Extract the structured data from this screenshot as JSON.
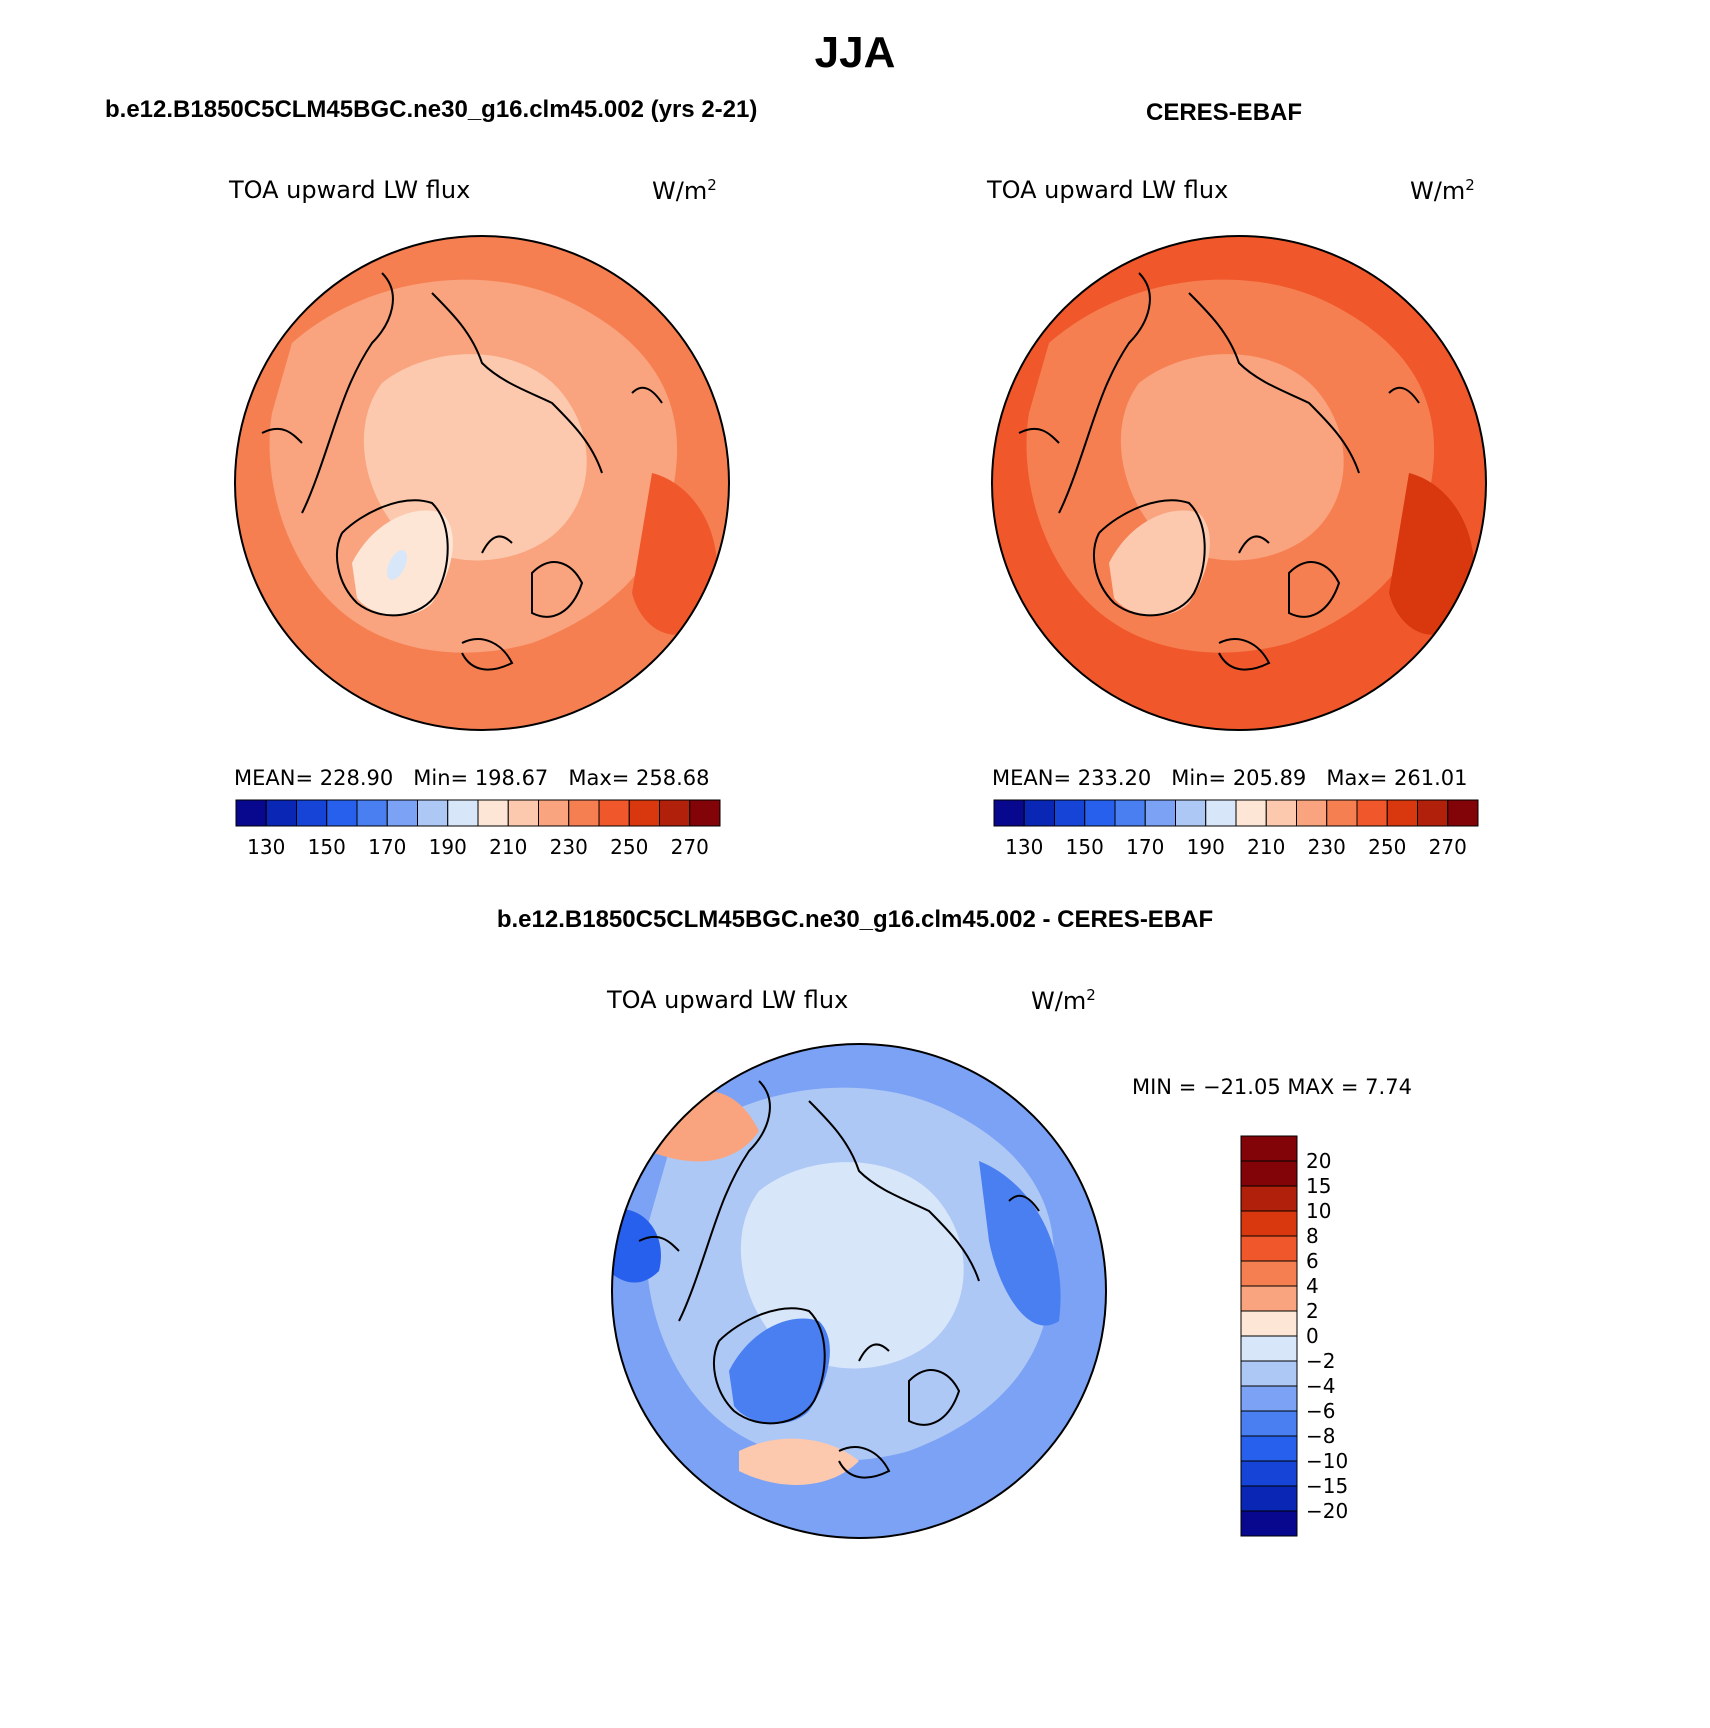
{
  "title": "JJA",
  "panels": [
    {
      "title": "b.e12.B1850C5CLM45BGC.ne30_g16.clm45.002 (yrs 2-21)",
      "variable": "TOA upward LW flux",
      "units": "W/m",
      "units_exp": "2",
      "stats": {
        "mean_label": "MEAN=",
        "mean": "228.90",
        "min_label": "Min=",
        "min": "198.67",
        "max_label": "Max=",
        "max": "258.68"
      }
    },
    {
      "title": "CERES-EBAF",
      "variable": "TOA upward LW flux",
      "units": "W/m",
      "units_exp": "2",
      "stats": {
        "mean_label": "MEAN=",
        "mean": "233.20",
        "min_label": "Min=",
        "min": "205.89",
        "max_label": "Max=",
        "max": "261.01"
      }
    },
    {
      "title": "b.e12.B1850C5CLM45BGC.ne30_g16.clm45.002 - CERES-EBAF",
      "variable": "TOA upward LW flux",
      "units": "W/m",
      "units_exp": "2",
      "stats": {
        "minmax": "MIN = −21.05 MAX =    7.74"
      }
    }
  ],
  "colorbar_abs": {
    "colors": [
      "#08088e",
      "#0a26b4",
      "#1544d6",
      "#2860ee",
      "#4a7ff2",
      "#7ba2f4",
      "#aec8f6",
      "#d8e6fa",
      "#fde6d6",
      "#fcc9ae",
      "#f9a47e",
      "#f67f52",
      "#f0582c",
      "#d9380e",
      "#b0200a",
      "#820408"
    ],
    "tick_labels": [
      "130",
      "150",
      "170",
      "190",
      "210",
      "230",
      "250",
      "270"
    ]
  },
  "colorbar_diff": {
    "colors": [
      "#820408",
      "#b0200a",
      "#d9380e",
      "#f0582c",
      "#f67f52",
      "#f9a47e",
      "#fde6d6",
      "#d8e6fa",
      "#aec8f6",
      "#7ba2f4",
      "#4a7ff2",
      "#2860ee",
      "#1544d6",
      "#0a26b4",
      "#08088e"
    ],
    "tick_labels": [
      "20",
      "15",
      "10",
      "8",
      "6",
      "4",
      "2",
      "0",
      "−2",
      "−4",
      "−6",
      "−8",
      "−10",
      "−15",
      "−20"
    ]
  },
  "map_fills": {
    "model": {
      "base": "#f67f52",
      "mid": "#f9a47e",
      "low": "#fcc9ae",
      "ice": "#fde6d6",
      "blue": "#d8e6fa",
      "edge": "#f0582c"
    },
    "obs": {
      "base": "#f0582c",
      "mid": "#f67f52",
      "low": "#f9a47e",
      "ice": "#fcc9ae",
      "blue": "#fde6d6",
      "edge": "#d9380e"
    },
    "diff": {
      "base": "#7ba2f4",
      "mid": "#aec8f6",
      "low": "#d8e6fa",
      "ice": "#4a7ff2",
      "blue": "#2860ee",
      "edge": "#f9a47e"
    }
  }
}
